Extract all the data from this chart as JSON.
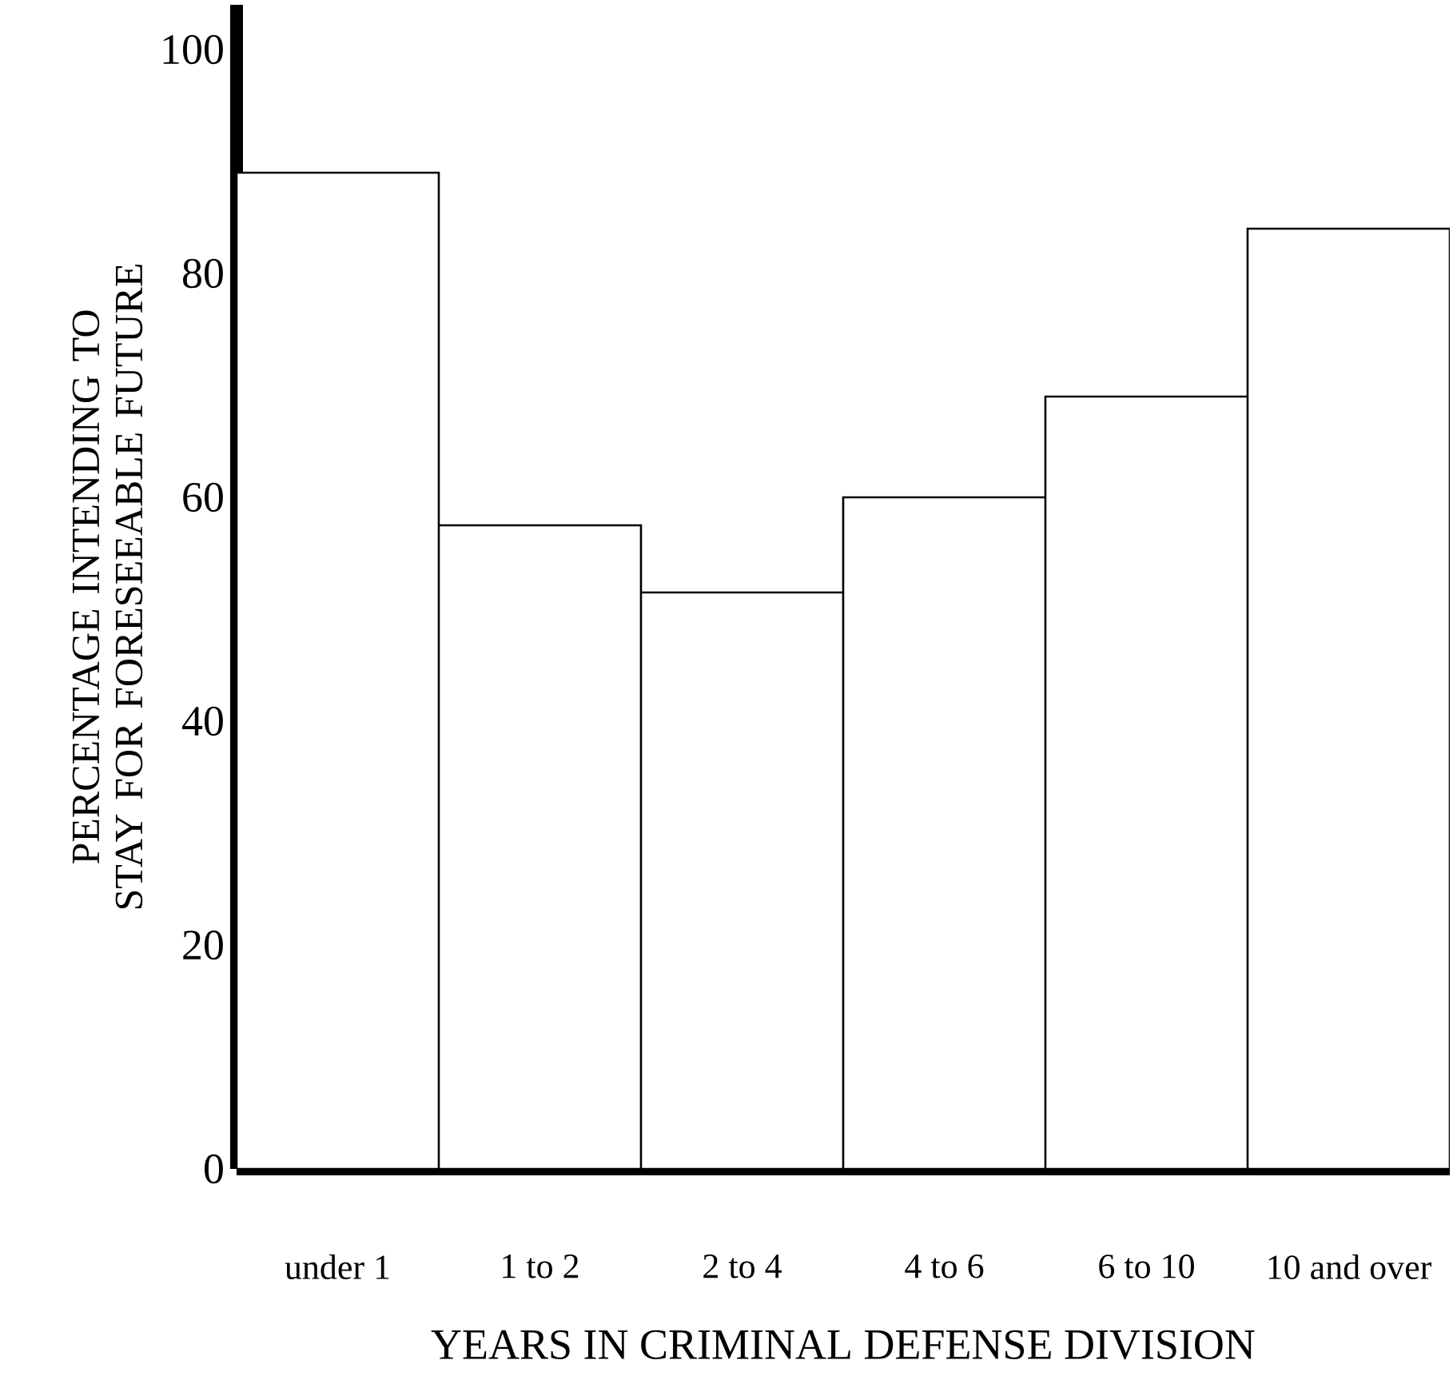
{
  "chart_data": {
    "type": "bar",
    "xlabel": "YEARS IN CRIMINAL DEFENSE DIVISION",
    "ylabel": "PERCENTAGE INTENDING TO STAY FOR FORESEEABLE FUTURE",
    "categories": [
      "under 1",
      "1 to 2",
      "2 to 4",
      "4 to 6",
      "6 to 10",
      "10 and over"
    ],
    "values": [
      89,
      57.5,
      51.5,
      60,
      69,
      84
    ],
    "color": "#ffffff",
    "ylim": [
      0,
      104
    ],
    "yticks": [
      0,
      20,
      40,
      60,
      80,
      100
    ]
  }
}
